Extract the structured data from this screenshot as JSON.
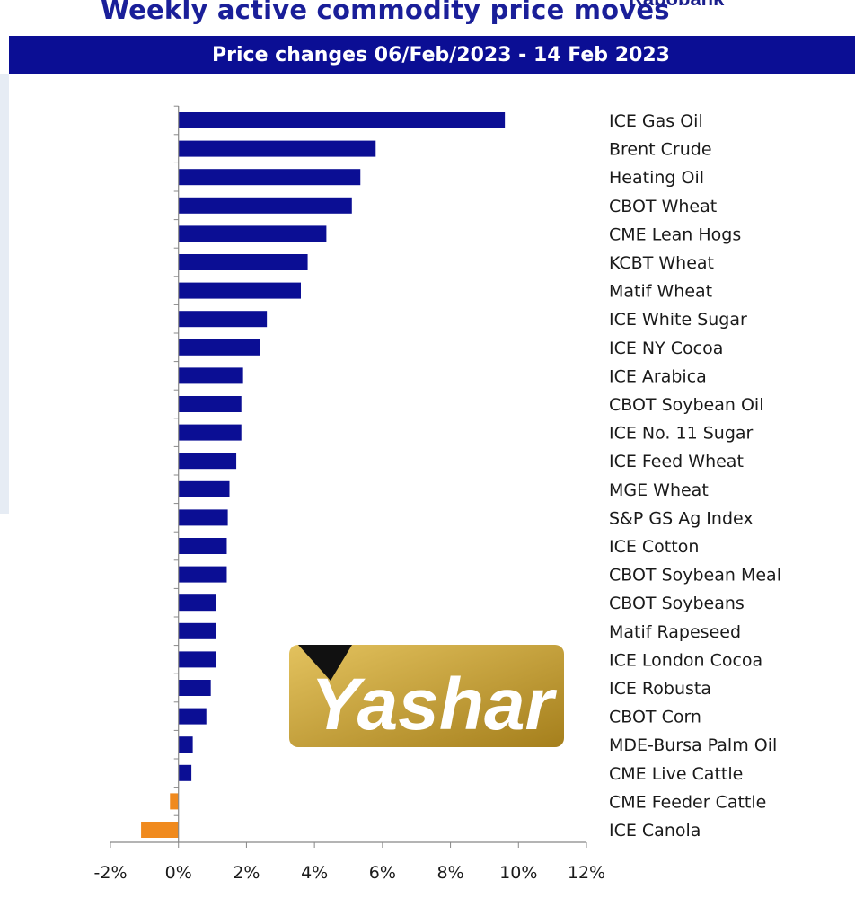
{
  "header": {
    "title": "Weekly active commodity price moves",
    "subtitle": "Price changes 06/Feb/2023 - 14 Feb 2023",
    "brand_peek": "Rabobank"
  },
  "watermark": {
    "text": "Yashar",
    "colors": {
      "gold_light": "#d7b24a",
      "gold_dark": "#a57f1c",
      "text": "#ffffff",
      "flag": "#111111"
    }
  },
  "colors": {
    "positive": "#0b0e94",
    "negative": "#f08a1e",
    "axis": "#888888",
    "header_bg": "#0b0e94"
  },
  "chart_data": {
    "type": "bar",
    "orientation": "horizontal",
    "title": "Weekly active commodity price moves",
    "subtitle": "Price changes 06/Feb/2023 - 14 Feb 2023",
    "xlabel": "",
    "ylabel": "",
    "xlim": [
      -2,
      12
    ],
    "xticks": [
      -2,
      0,
      2,
      4,
      6,
      8,
      10,
      12
    ],
    "xtick_labels": [
      "-2%",
      "0%",
      "2%",
      "4%",
      "6%",
      "8%",
      "10%",
      "12%"
    ],
    "categories": [
      "ICE Gas Oil",
      "Brent Crude",
      "Heating Oil",
      "CBOT Wheat",
      "CME Lean Hogs",
      "KCBT Wheat",
      "Matif Wheat",
      "ICE White Sugar",
      "ICE NY Cocoa",
      "ICE Arabica",
      "CBOT Soybean Oil",
      "ICE No. 11 Sugar",
      "ICE Feed Wheat",
      "MGE Wheat",
      "S&P GS Ag Index",
      "ICE Cotton",
      "CBOT Soybean Meal",
      "CBOT Soybeans",
      "Matif Rapeseed",
      "ICE London Cocoa",
      "ICE Robusta",
      "CBOT Corn",
      "MDE-Bursa Palm Oil",
      "CME Live Cattle",
      "CME Feeder Cattle",
      "ICE Canola"
    ],
    "values": [
      9.6,
      5.8,
      5.35,
      5.1,
      4.35,
      3.8,
      3.6,
      2.6,
      2.4,
      1.9,
      1.85,
      1.85,
      1.7,
      1.5,
      1.45,
      1.42,
      1.42,
      1.1,
      1.1,
      1.1,
      0.95,
      0.82,
      0.42,
      0.38,
      -0.25,
      -1.1
    ],
    "grid": false,
    "legend": "none"
  }
}
